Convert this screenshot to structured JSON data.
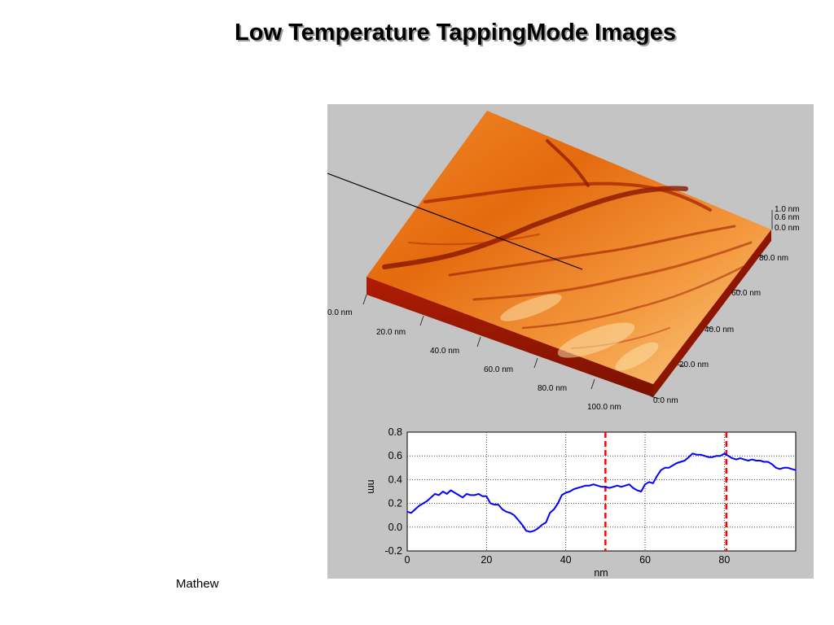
{
  "slide": {
    "title": "Low Temperature TappingMode Images",
    "author": "Mathew"
  },
  "afm_image": {
    "x_axis_labels": [
      "0.0 nm",
      "20.0 nm",
      "40.0 nm",
      "60.0 nm",
      "80.0 nm",
      "100.0 nm"
    ],
    "y_axis_labels": [
      "0.0 nm",
      "20.0 nm",
      "40.0 nm",
      "60.0 nm",
      "80.0 nm"
    ],
    "z_axis_labels": [
      "1.0 nm",
      "0.6 nm",
      "0.0 nm"
    ],
    "colors": {
      "surface_light": "#f8d08a",
      "surface_mid": "#e56a0e",
      "surface_dark": "#8a1600",
      "background": "#c4c4c4"
    }
  },
  "chart_data": {
    "type": "line",
    "xlabel": "nm",
    "ylabel": "nm",
    "xlim": [
      0,
      98
    ],
    "ylim": [
      -0.2,
      0.8
    ],
    "xticks": [
      0,
      20,
      40,
      60,
      80
    ],
    "yticks": [
      -0.2,
      0.0,
      0.2,
      0.4,
      0.6,
      0.8
    ],
    "grid": true,
    "series": [
      {
        "color": "#0000ff",
        "x": [
          0,
          1,
          2,
          3,
          4,
          5,
          6,
          7,
          8,
          9,
          10,
          11,
          12,
          13,
          14,
          15,
          16,
          17,
          18,
          19,
          20,
          21,
          22,
          23,
          24,
          25,
          26,
          27,
          28,
          29,
          30,
          31,
          32,
          33,
          34,
          35,
          36,
          37,
          38,
          39,
          40,
          41,
          42,
          43,
          44,
          45,
          46,
          47,
          48,
          49,
          50,
          51,
          52,
          53,
          54,
          55,
          56,
          57,
          58,
          59,
          60,
          61,
          62,
          63,
          64,
          65,
          66,
          67,
          68,
          69,
          70,
          71,
          72,
          73,
          74,
          75,
          76,
          77,
          78,
          79,
          80,
          81,
          82,
          83,
          84,
          85,
          86,
          87,
          88,
          89,
          90,
          91,
          92,
          93,
          94,
          95,
          96,
          97,
          98
        ],
        "y": [
          0.13,
          0.12,
          0.15,
          0.18,
          0.2,
          0.22,
          0.25,
          0.28,
          0.27,
          0.3,
          0.28,
          0.31,
          0.29,
          0.27,
          0.25,
          0.28,
          0.27,
          0.27,
          0.28,
          0.26,
          0.26,
          0.2,
          0.19,
          0.19,
          0.15,
          0.13,
          0.12,
          0.1,
          0.06,
          0.02,
          -0.03,
          -0.04,
          -0.03,
          -0.01,
          0.02,
          0.04,
          0.12,
          0.15,
          0.2,
          0.27,
          0.29,
          0.3,
          0.32,
          0.33,
          0.34,
          0.35,
          0.35,
          0.36,
          0.35,
          0.34,
          0.34,
          0.33,
          0.34,
          0.35,
          0.34,
          0.35,
          0.36,
          0.33,
          0.31,
          0.3,
          0.36,
          0.38,
          0.37,
          0.43,
          0.48,
          0.5,
          0.5,
          0.52,
          0.54,
          0.55,
          0.56,
          0.59,
          0.62,
          0.61,
          0.61,
          0.6,
          0.59,
          0.59,
          0.6,
          0.6,
          0.62,
          0.6,
          0.58,
          0.57,
          0.58,
          0.57,
          0.56,
          0.57,
          0.56,
          0.56,
          0.55,
          0.55,
          0.53,
          0.5,
          0.49,
          0.5,
          0.5,
          0.49,
          0.48
        ]
      }
    ],
    "markers": [
      {
        "x": 50,
        "color": "#ff0000",
        "style": "dashed"
      },
      {
        "x": 80.5,
        "color": "#ff0000",
        "style": "dashed"
      }
    ]
  }
}
